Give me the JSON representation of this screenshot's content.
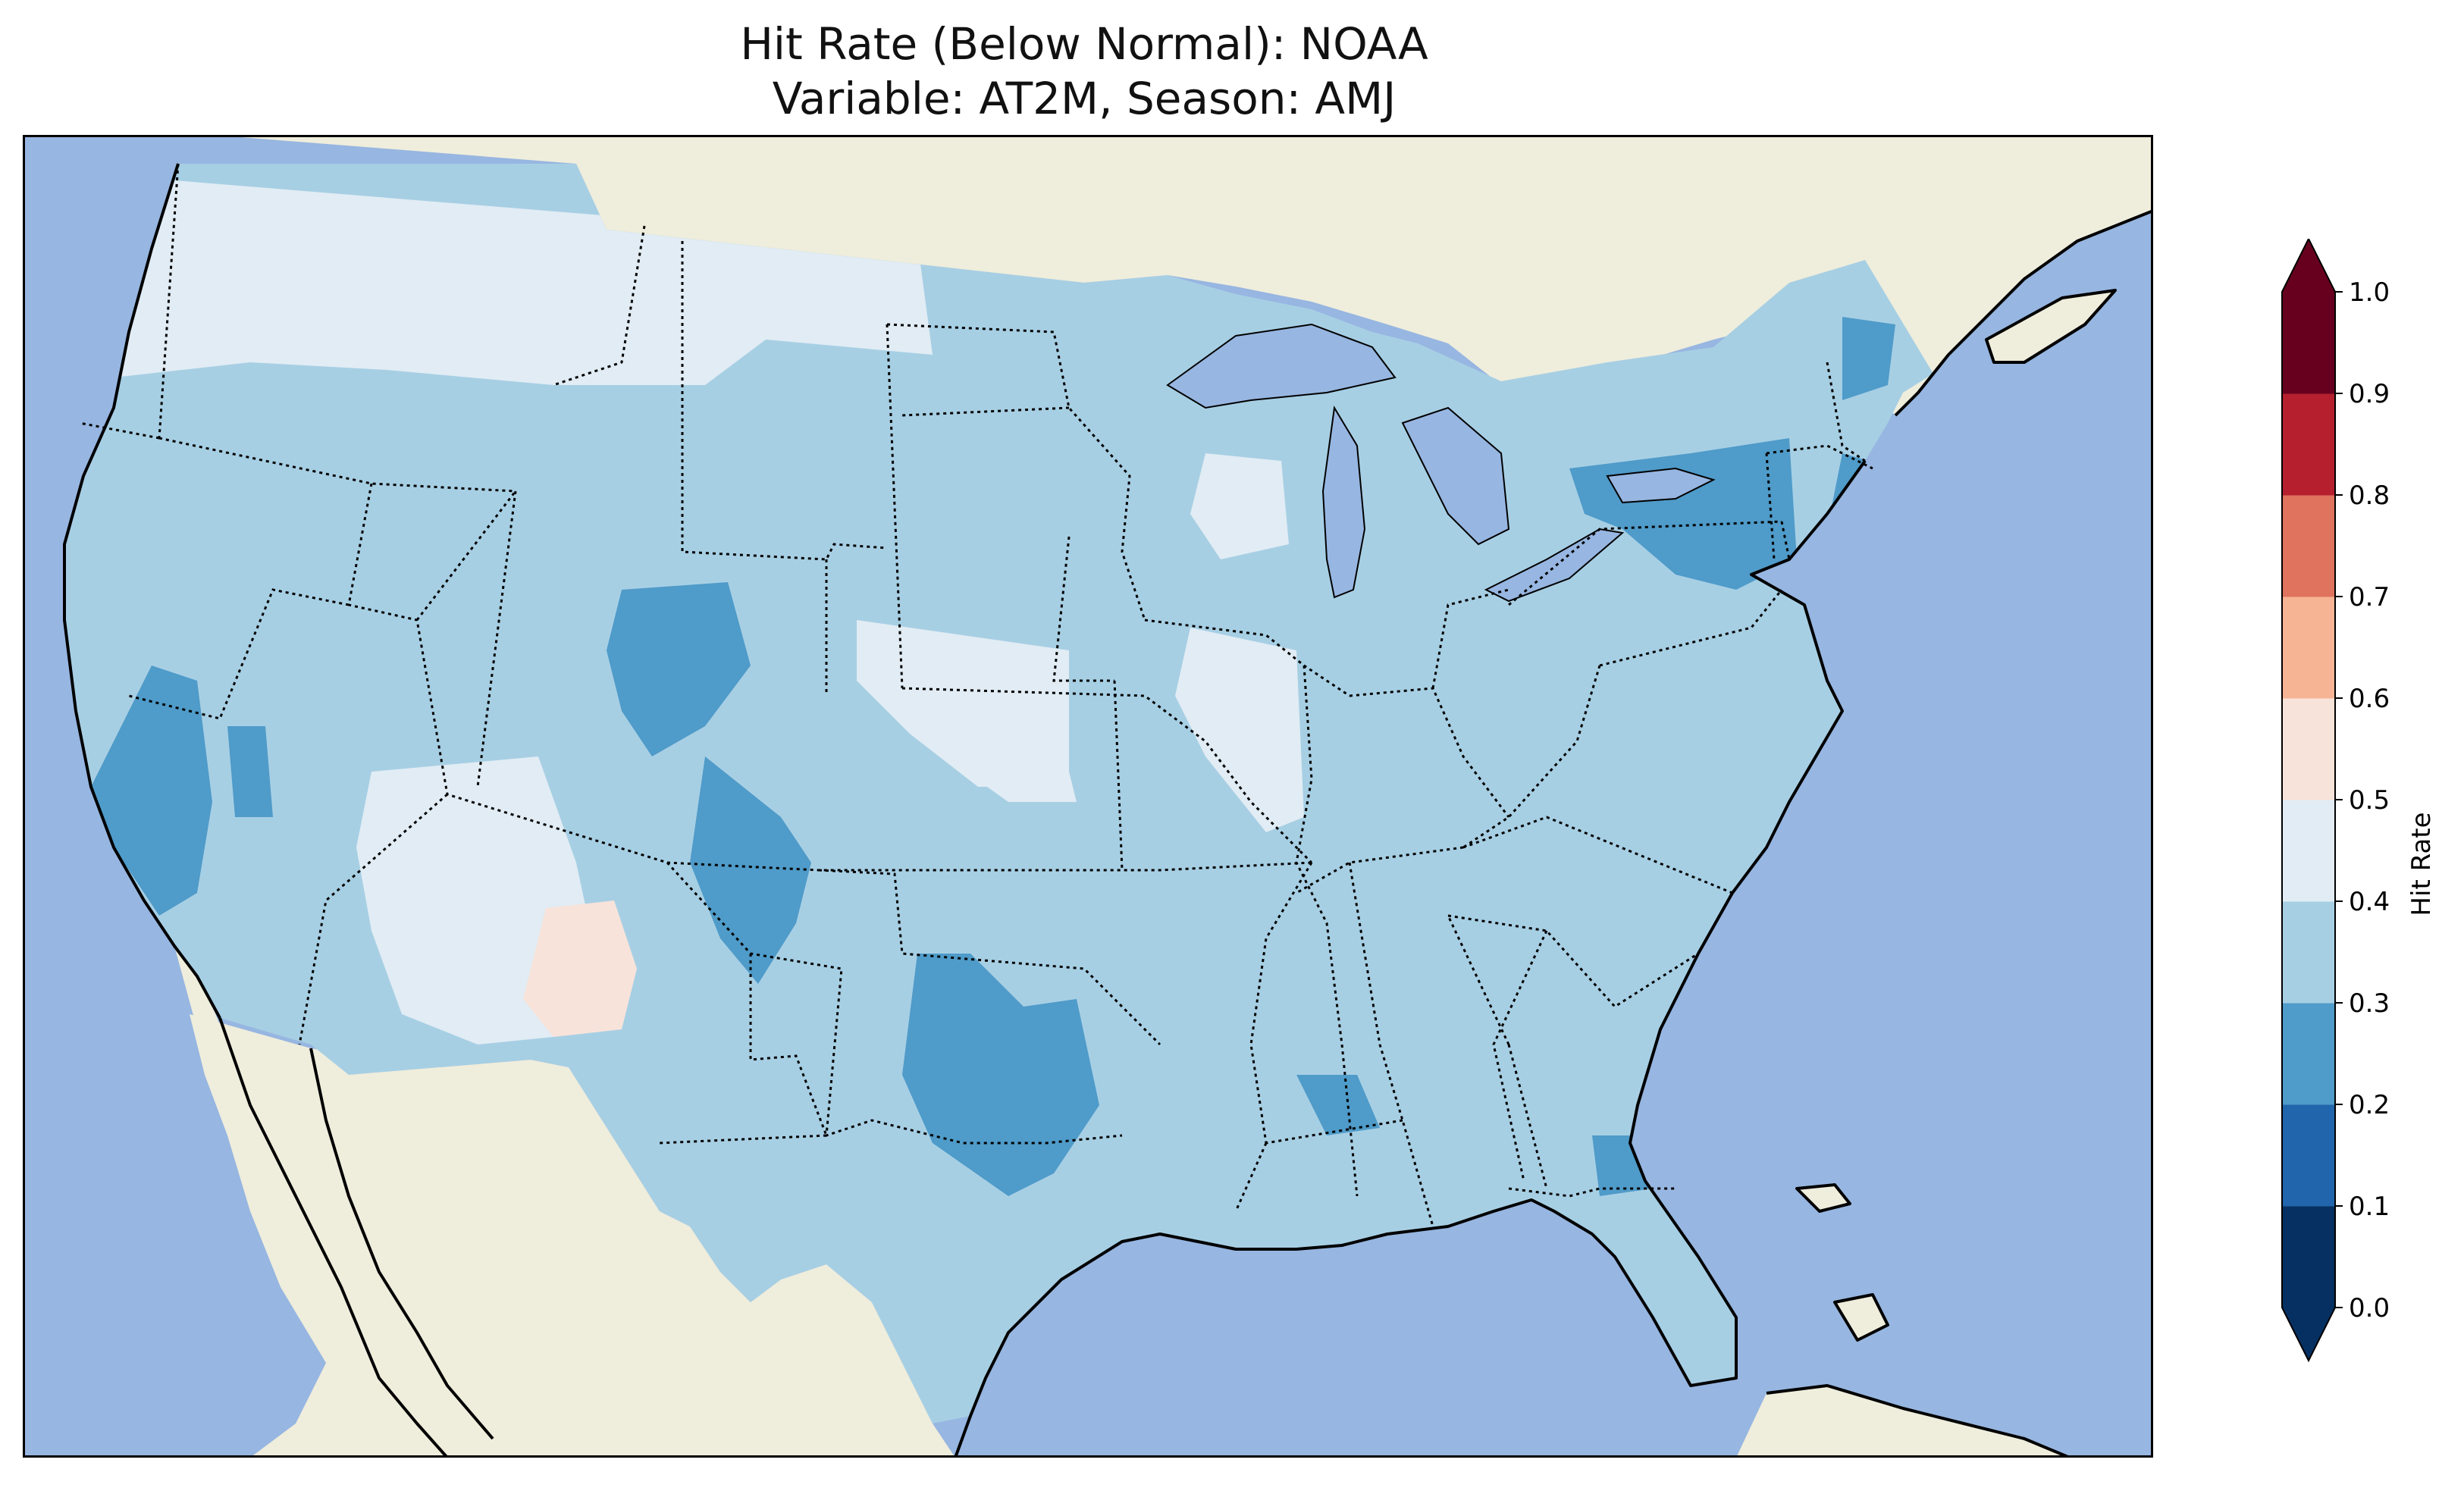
{
  "title": {
    "line1": "Hit Rate (Below Normal): NOAA",
    "line2": "Variable: AT2M, Season: AMJ"
  },
  "colors": {
    "ocean": "#97B6E1",
    "land": "#EFEDDC",
    "coast": "#000000",
    "state_border": "#000000"
  },
  "colorbar": {
    "label": "Hit Rate",
    "ticks": [
      "0.0",
      "0.1",
      "0.2",
      "0.3",
      "0.4",
      "0.5",
      "0.6",
      "0.7",
      "0.8",
      "0.9",
      "1.0"
    ],
    "bins": [
      {
        "from": 0.0,
        "to": 0.1,
        "color": "#053061"
      },
      {
        "from": 0.1,
        "to": 0.2,
        "color": "#2166AC"
      },
      {
        "from": 0.2,
        "to": 0.3,
        "color": "#4F9BC9"
      },
      {
        "from": 0.3,
        "to": 0.4,
        "color": "#A7CFE4"
      },
      {
        "from": 0.4,
        "to": 0.5,
        "color": "#E1ECF4"
      },
      {
        "from": 0.5,
        "to": 0.6,
        "color": "#F8E3DA"
      },
      {
        "from": 0.6,
        "to": 0.7,
        "color": "#F6B495"
      },
      {
        "from": 0.7,
        "to": 0.8,
        "color": "#DF735D"
      },
      {
        "from": 0.8,
        "to": 0.9,
        "color": "#B51F2E"
      },
      {
        "from": 0.9,
        "to": 1.0,
        "color": "#67001F"
      }
    ],
    "extend": "both"
  },
  "hit_rate_regions": [
    {
      "area": "Most of CONUS",
      "value": 0.35
    },
    {
      "area": "Northern Rockies / Northern Plains",
      "value": 0.45
    },
    {
      "area": "Wisconsin / Illinois / Iowa pockets",
      "value": 0.45
    },
    {
      "area": "Central-Southern California",
      "value": 0.25
    },
    {
      "area": "Colorado / Wyoming",
      "value": 0.25
    },
    {
      "area": "Texas / Oklahoma",
      "value": 0.25
    },
    {
      "area": "New York / New England",
      "value": 0.25
    },
    {
      "area": "Arizona",
      "value": 0.45
    },
    {
      "area": "Western New Mexico",
      "value": 0.55
    }
  ]
}
